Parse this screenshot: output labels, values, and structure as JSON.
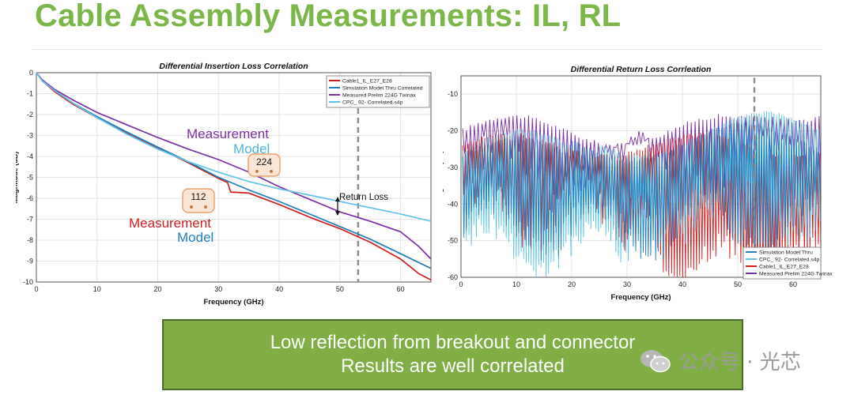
{
  "slide_title": "Cable Assembly Measurements: IL, RL",
  "summary": [
    "Low reflection from breakout and connector",
    "Results are well correlated"
  ],
  "watermark": "公众号 · 光芯",
  "colors": {
    "title_green": "#7ab648",
    "box_green": "#7fae45",
    "red": "#d01c1c",
    "blue": "#1f7fbf",
    "purple": "#7b2fa6",
    "cyan": "#5fc4e8"
  },
  "chart_data": [
    {
      "id": "il",
      "type": "line",
      "title": "Differential Insertion Loss Correlation",
      "xlabel": "Frequency (GHz)",
      "ylabel": "Magnitude (dB)",
      "xlim": [
        0,
        65
      ],
      "ylim": [
        -10,
        0
      ],
      "xticks": [
        0,
        10,
        20,
        30,
        40,
        50,
        60
      ],
      "yticks": [
        0,
        -1,
        -2,
        -3,
        -4,
        -5,
        -6,
        -7,
        -8,
        -9,
        -10
      ],
      "grid": true,
      "legend_position": "top-right",
      "marker_x": 53,
      "series": [
        {
          "name": "Cable1_IL_E27_E28",
          "color": "#d01c1c",
          "x": [
            0,
            1,
            3,
            6,
            10,
            15,
            20,
            25,
            30,
            31.5,
            32,
            35,
            40,
            45,
            50,
            55,
            60,
            63,
            65
          ],
          "y": [
            0,
            -0.4,
            -0.9,
            -1.5,
            -2.15,
            -2.9,
            -3.6,
            -4.3,
            -5.05,
            -5.25,
            -5.7,
            -5.75,
            -6.3,
            -6.9,
            -7.45,
            -8.1,
            -8.9,
            -9.6,
            -9.9
          ]
        },
        {
          "name": "Simulation Model Thru Correlated",
          "color": "#1f7fbf",
          "x": [
            0,
            1,
            3,
            6,
            10,
            15,
            20,
            25,
            30,
            35,
            40,
            45,
            50,
            55,
            60,
            65
          ],
          "y": [
            0,
            -0.4,
            -0.85,
            -1.45,
            -2.1,
            -2.85,
            -3.55,
            -4.25,
            -5.0,
            -5.6,
            -6.15,
            -6.75,
            -7.35,
            -7.95,
            -8.65,
            -9.35
          ]
        },
        {
          "name": "Measured Prelim 224G Twinax",
          "color": "#7b2fa6",
          "x": [
            0,
            1,
            3,
            6,
            10,
            15,
            20,
            25,
            30,
            35,
            40,
            45,
            50,
            55,
            60,
            63,
            65
          ],
          "y": [
            0,
            -0.35,
            -0.8,
            -1.3,
            -1.9,
            -2.5,
            -3.1,
            -3.65,
            -4.15,
            -4.75,
            -5.45,
            -6.05,
            -6.65,
            -7.1,
            -7.6,
            -8.3,
            -8.9
          ]
        },
        {
          "name": "CPC_  92-      Correlated.s4p",
          "color": "#5fc4e8",
          "x": [
            0,
            1,
            3,
            6,
            10,
            15,
            20,
            25,
            30,
            35,
            40,
            45,
            50,
            55,
            60,
            65
          ],
          "y": [
            0,
            -0.4,
            -0.85,
            -1.45,
            -2.15,
            -2.95,
            -3.65,
            -4.25,
            -4.75,
            -5.2,
            -5.55,
            -5.85,
            -6.15,
            -6.45,
            -6.75,
            -7.1
          ]
        }
      ],
      "annotations": {
        "measurement_upper": "Measurement",
        "model_upper": "Model",
        "tag_224": "224",
        "tag_112": "112",
        "measurement_lower": "Measurement",
        "model_lower": "Model",
        "return_loss": "Return Loss"
      }
    },
    {
      "id": "rl",
      "type": "line",
      "title": "Differential Return Loss Corrleation",
      "xlabel": "Frequency (GHz)",
      "ylabel": "Magnitude (dB)",
      "xlim": [
        0,
        65
      ],
      "ylim": [
        -60,
        -5
      ],
      "xticks": [
        0,
        10,
        20,
        30,
        40,
        50,
        60
      ],
      "yticks": [
        -10,
        -20,
        -30,
        -40,
        -50,
        -60
      ],
      "grid": true,
      "legend_position": "bottom-right",
      "marker_x": 53,
      "series": [
        {
          "name": "Simulation Model Thru",
          "color": "#1f7fbf"
        },
        {
          "name": "CPC_  92-       Correlated.s4p",
          "color": "#5fc4e8"
        },
        {
          "name": "Cable1_IL_E27_E28",
          "color": "#d01c1c"
        },
        {
          "name": "Measured Prelim 224G Twinax",
          "color": "#7b2fa6"
        }
      ]
    }
  ]
}
